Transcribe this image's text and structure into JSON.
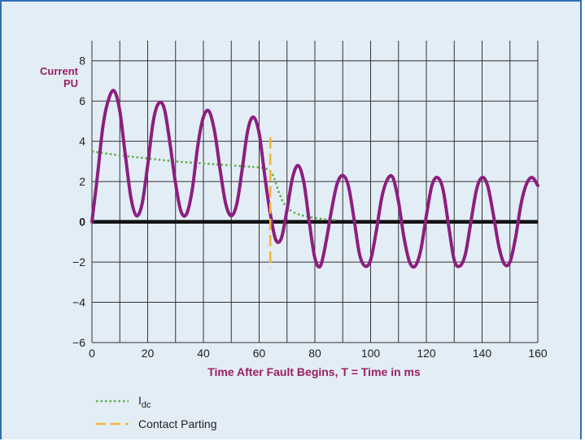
{
  "chart_data": {
    "type": "line",
    "title": "",
    "xlabel": "Time After Fault Begins, T = Time in ms",
    "ylabel_line1": "Current",
    "ylabel_line2": "PU",
    "xlim": [
      0,
      160
    ],
    "ylim": [
      -6,
      9
    ],
    "x_ticks": [
      0,
      20,
      40,
      60,
      80,
      100,
      120,
      140,
      160
    ],
    "y_ticks": [
      -6,
      -4,
      -2,
      0,
      2,
      4,
      6,
      8
    ],
    "y_tick_labels": [
      "−6",
      "−4",
      "−2",
      "0",
      "2",
      "4",
      "6",
      "8"
    ],
    "x_grid_step": 10,
    "y_grid_step": 2,
    "grid": true,
    "legend_position": "bottom-left",
    "colors": {
      "current": "#8b1f7f",
      "idc": "#5fb145",
      "contact": "#f5b335",
      "zero_line": "#111111",
      "grid": "#333333",
      "label": "#9a1f63"
    },
    "series": [
      {
        "name": "",
        "style": "solid",
        "points": [
          [
            0,
            0
          ],
          [
            2,
            2.3
          ],
          [
            4,
            4.8
          ],
          [
            6,
            6.1
          ],
          [
            8,
            6.5
          ],
          [
            10,
            5.5
          ],
          [
            12,
            3.3
          ],
          [
            14,
            1.2
          ],
          [
            16,
            0.3
          ],
          [
            18,
            0.9
          ],
          [
            20,
            2.8
          ],
          [
            22,
            5.0
          ],
          [
            24,
            5.9
          ],
          [
            26,
            5.6
          ],
          [
            28,
            3.9
          ],
          [
            30,
            1.9
          ],
          [
            32,
            0.5
          ],
          [
            34,
            0.4
          ],
          [
            36,
            1.6
          ],
          [
            38,
            3.8
          ],
          [
            40,
            5.2
          ],
          [
            42,
            5.5
          ],
          [
            44,
            4.5
          ],
          [
            46,
            2.6
          ],
          [
            48,
            0.9
          ],
          [
            50,
            0.3
          ],
          [
            52,
            0.9
          ],
          [
            54,
            2.7
          ],
          [
            56,
            4.6
          ],
          [
            58,
            5.2
          ],
          [
            60,
            4.4
          ],
          [
            62,
            2.3
          ],
          [
            64,
            0.4
          ],
          [
            66,
            -0.9
          ],
          [
            68,
            -0.8
          ],
          [
            70,
            0.6
          ],
          [
            72,
            2.2
          ],
          [
            74,
            2.8
          ],
          [
            76,
            2.0
          ],
          [
            78,
            0.0
          ],
          [
            80,
            -1.8
          ],
          [
            82,
            -2.2
          ],
          [
            84,
            -1.0
          ],
          [
            86,
            0.6
          ],
          [
            88,
            1.9
          ],
          [
            90,
            2.3
          ],
          [
            92,
            1.8
          ],
          [
            94,
            0.2
          ],
          [
            96,
            -1.6
          ],
          [
            98,
            -2.2
          ],
          [
            100,
            -1.9
          ],
          [
            102,
            -0.5
          ],
          [
            104,
            1.2
          ],
          [
            106,
            2.1
          ],
          [
            108,
            2.2
          ],
          [
            110,
            1.0
          ],
          [
            112,
            -0.8
          ],
          [
            114,
            -2.0
          ],
          [
            116,
            -2.2
          ],
          [
            118,
            -1.4
          ],
          [
            120,
            0.3
          ],
          [
            122,
            1.8
          ],
          [
            124,
            2.2
          ],
          [
            126,
            1.6
          ],
          [
            128,
            -0.2
          ],
          [
            130,
            -1.9
          ],
          [
            132,
            -2.2
          ],
          [
            134,
            -1.6
          ],
          [
            136,
            0.0
          ],
          [
            138,
            1.6
          ],
          [
            140,
            2.2
          ],
          [
            142,
            1.8
          ],
          [
            144,
            0.4
          ],
          [
            146,
            -1.2
          ],
          [
            148,
            -2.1
          ],
          [
            150,
            -2.0
          ],
          [
            152,
            -0.8
          ],
          [
            154,
            0.9
          ],
          [
            156,
            1.9
          ],
          [
            158,
            2.2
          ],
          [
            160,
            1.8
          ]
        ]
      },
      {
        "name": "Idc",
        "style": "dotted",
        "points": [
          [
            0,
            3.5
          ],
          [
            10,
            3.3
          ],
          [
            20,
            3.15
          ],
          [
            30,
            3.0
          ],
          [
            40,
            2.9
          ],
          [
            50,
            2.8
          ],
          [
            60,
            2.7
          ],
          [
            63,
            2.6
          ],
          [
            65,
            2.3
          ],
          [
            67,
            1.5
          ],
          [
            69,
            0.9
          ],
          [
            72,
            0.5
          ],
          [
            76,
            0.3
          ],
          [
            80,
            0.2
          ],
          [
            85,
            0.1
          ],
          [
            88,
            0.1
          ]
        ]
      },
      {
        "name": "Contact Parting",
        "style": "dashed",
        "points": [
          [
            64,
            4.2
          ],
          [
            64,
            -2.3
          ]
        ]
      }
    ],
    "legend": {
      "idc_main": "I",
      "idc_sub": "dc",
      "contact": "Contact Parting"
    }
  }
}
